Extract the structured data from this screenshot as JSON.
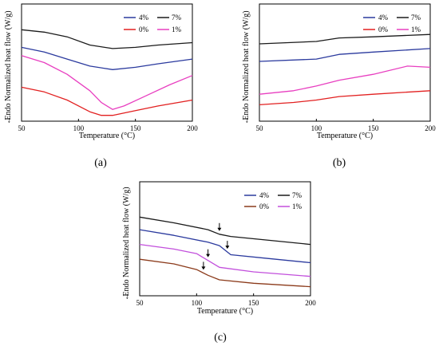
{
  "chart_data": [
    {
      "type": "line",
      "panel_caption": "(a)",
      "xlabel": "Temperature (°C)",
      "ylabel": "Endo Normalized heat flow (W/g)",
      "ylabel_arrow": "←",
      "xlim": [
        50,
        200
      ],
      "ylim": [
        0,
        1
      ],
      "xticks": [
        "50",
        "100",
        "150",
        "200"
      ],
      "legend_position": "top-right",
      "grid": false,
      "series": [
        {
          "name": "7%",
          "color": "#1a1a1a",
          "x": [
            50,
            70,
            90,
            110,
            130,
            150,
            170,
            200
          ],
          "y": [
            0.78,
            0.76,
            0.72,
            0.65,
            0.62,
            0.63,
            0.65,
            0.67
          ]
        },
        {
          "name": "4%",
          "color": "#2b3a9e",
          "x": [
            50,
            70,
            90,
            110,
            130,
            150,
            170,
            200
          ],
          "y": [
            0.63,
            0.59,
            0.53,
            0.47,
            0.44,
            0.46,
            0.49,
            0.53
          ]
        },
        {
          "name": "1%",
          "color": "#e83fc0",
          "x": [
            50,
            70,
            90,
            110,
            120,
            130,
            140,
            160,
            180,
            200
          ],
          "y": [
            0.56,
            0.5,
            0.4,
            0.26,
            0.16,
            0.1,
            0.13,
            0.22,
            0.31,
            0.39
          ]
        },
        {
          "name": "0%",
          "color": "#e22020",
          "x": [
            50,
            70,
            90,
            110,
            120,
            130,
            150,
            170,
            200
          ],
          "y": [
            0.29,
            0.25,
            0.18,
            0.08,
            0.05,
            0.05,
            0.09,
            0.13,
            0.18
          ]
        }
      ]
    },
    {
      "type": "line",
      "panel_caption": "(b)",
      "xlabel": "Temperature (°C)",
      "ylabel": "Endo Normalized heat flow (W/g)",
      "ylabel_arrow": "←",
      "xlim": [
        50,
        200
      ],
      "ylim": [
        0,
        1
      ],
      "xticks": [
        "50",
        "100",
        "150",
        "200"
      ],
      "legend_position": "top-right",
      "grid": false,
      "series": [
        {
          "name": "7%",
          "color": "#1a1a1a",
          "x": [
            50,
            100,
            120,
            150,
            200
          ],
          "y": [
            0.66,
            0.68,
            0.71,
            0.72,
            0.74
          ]
        },
        {
          "name": "4%",
          "color": "#2b3a9e",
          "x": [
            50,
            100,
            120,
            150,
            200
          ],
          "y": [
            0.51,
            0.53,
            0.57,
            0.59,
            0.62
          ]
        },
        {
          "name": "1%",
          "color": "#e83fc0",
          "x": [
            50,
            80,
            100,
            120,
            150,
            180,
            200
          ],
          "y": [
            0.23,
            0.26,
            0.3,
            0.35,
            0.4,
            0.47,
            0.46
          ]
        },
        {
          "name": "0%",
          "color": "#e22020",
          "x": [
            50,
            80,
            100,
            120,
            150,
            200
          ],
          "y": [
            0.14,
            0.16,
            0.18,
            0.21,
            0.23,
            0.26
          ]
        }
      ]
    },
    {
      "type": "line",
      "panel_caption": "(c)",
      "xlabel": "Temperature (°C)",
      "ylabel": "Endo Normalized heat flow (W/g)",
      "ylabel_arrow": "←",
      "xlim": [
        50,
        200
      ],
      "ylim": [
        0,
        1
      ],
      "xticks": [
        "50",
        "100",
        "150",
        "200"
      ],
      "legend_position": "top-right",
      "grid": false,
      "annotations": "arrows marking glass transitions",
      "series": [
        {
          "name": "7%",
          "color": "#1a1a1a",
          "x": [
            50,
            80,
            110,
            120,
            130,
            160,
            200
          ],
          "y": [
            0.69,
            0.64,
            0.58,
            0.54,
            0.52,
            0.49,
            0.45
          ]
        },
        {
          "name": "4%",
          "color": "#2b3a9e",
          "x": [
            50,
            80,
            110,
            120,
            130,
            160,
            200
          ],
          "y": [
            0.58,
            0.53,
            0.47,
            0.44,
            0.36,
            0.33,
            0.29
          ]
        },
        {
          "name": "1%",
          "color": "#c24fdc",
          "x": [
            50,
            80,
            100,
            110,
            120,
            150,
            200
          ],
          "y": [
            0.45,
            0.41,
            0.37,
            0.31,
            0.25,
            0.21,
            0.17
          ]
        },
        {
          "name": "0%",
          "color": "#8b3a1a",
          "x": [
            50,
            80,
            100,
            110,
            120,
            150,
            200
          ],
          "y": [
            0.32,
            0.28,
            0.23,
            0.18,
            0.14,
            0.11,
            0.08
          ]
        }
      ],
      "arrows_x": [
        120,
        127,
        110,
        106
      ]
    }
  ]
}
